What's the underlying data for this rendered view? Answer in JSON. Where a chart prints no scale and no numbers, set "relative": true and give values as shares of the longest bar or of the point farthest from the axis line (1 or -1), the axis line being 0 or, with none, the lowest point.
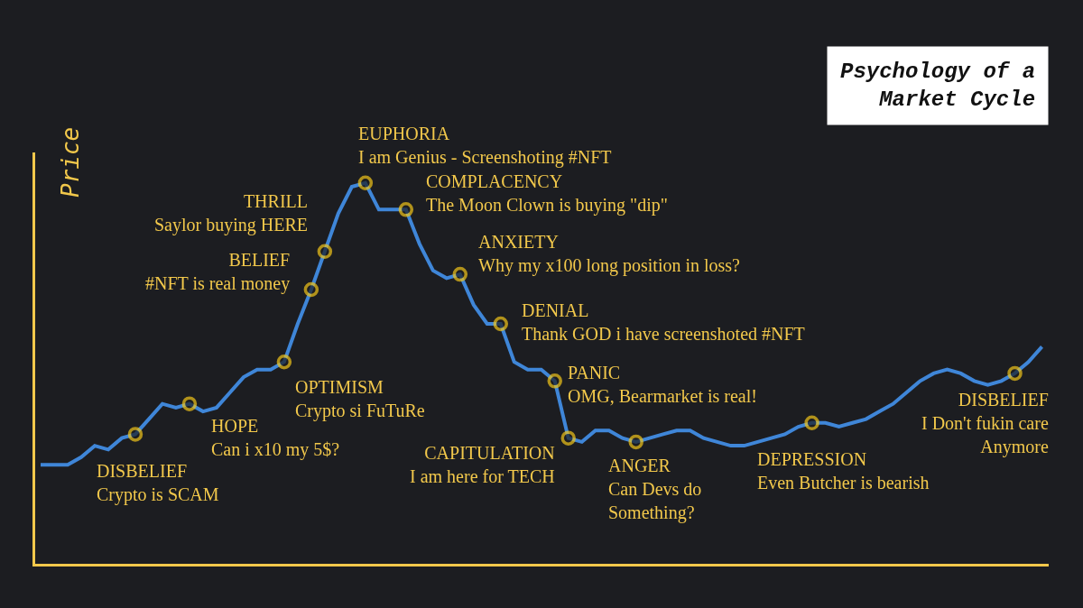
{
  "chart_data": {
    "type": "line",
    "title": "Psychology of a\nMarket Cycle",
    "ylabel": "Price",
    "relative": true,
    "grid": false,
    "categories": [
      null,
      null,
      null,
      null,
      null,
      null,
      null,
      null,
      null,
      null,
      null,
      null,
      null,
      null,
      null,
      null,
      null,
      null,
      null,
      null,
      null,
      null,
      null,
      null,
      null,
      null,
      null,
      null,
      null,
      null,
      null,
      null,
      null,
      null,
      null,
      null,
      null,
      null,
      null,
      null,
      null,
      null,
      null,
      null,
      null,
      null,
      null,
      null,
      null,
      null,
      null,
      null,
      null,
      null,
      null,
      null,
      null,
      null,
      null,
      null,
      null,
      null,
      null,
      null,
      null,
      null,
      null,
      null,
      null,
      null,
      null,
      null,
      null,
      null,
      null
    ],
    "series": [
      {
        "color": "#3f86d8",
        "values": [
          0.26,
          0.26,
          0.26,
          0.28,
          0.31,
          0.3,
          0.33,
          0.34,
          0.38,
          0.42,
          0.41,
          0.42,
          0.4,
          0.41,
          0.45,
          0.49,
          0.51,
          0.51,
          0.53,
          0.63,
          0.72,
          0.82,
          0.92,
          0.99,
          1.0,
          0.93,
          0.93,
          0.93,
          0.84,
          0.77,
          0.75,
          0.76,
          0.68,
          0.63,
          0.63,
          0.53,
          0.51,
          0.51,
          0.48,
          0.33,
          0.32,
          0.35,
          0.35,
          0.33,
          0.32,
          0.33,
          0.34,
          0.35,
          0.35,
          0.33,
          0.32,
          0.31,
          0.31,
          0.32,
          0.33,
          0.34,
          0.36,
          0.37,
          0.37,
          0.36,
          0.37,
          0.38,
          0.4,
          0.42,
          0.45,
          0.48,
          0.5,
          0.51,
          0.5,
          0.48,
          0.47,
          0.48,
          0.5,
          0.53,
          0.57
        ]
      }
    ],
    "annotations": [
      "DISBELIEF\nCrypto is SCAM",
      "HOPE\nCan i x10 my 5$?",
      "OPTIMISM\nCrypto si FuTuRe",
      "BELIEF\n#NFT is real money",
      "THRILL\nSaylor buying HERE",
      "EUPHORIA\nI am Genius - Screenshoting #NFT",
      "COMPLACENCY\nThe Moon Clown is buying \"dip\"",
      "ANXIETY\nWhy my x100 long position in loss?",
      "DENIAL\nThank GOD i have screenshoted #NFT",
      "PANIC\nOMG, Bearmarket is real!",
      "CAPITULATION\nI am here for TECH",
      "ANGER\nCan Devs do\nSomething?",
      "DEPRESSION\nEven Butcher is bearish",
      "DISBELIEF\nI Don't fukin care\nAnymore"
    ]
  }
}
